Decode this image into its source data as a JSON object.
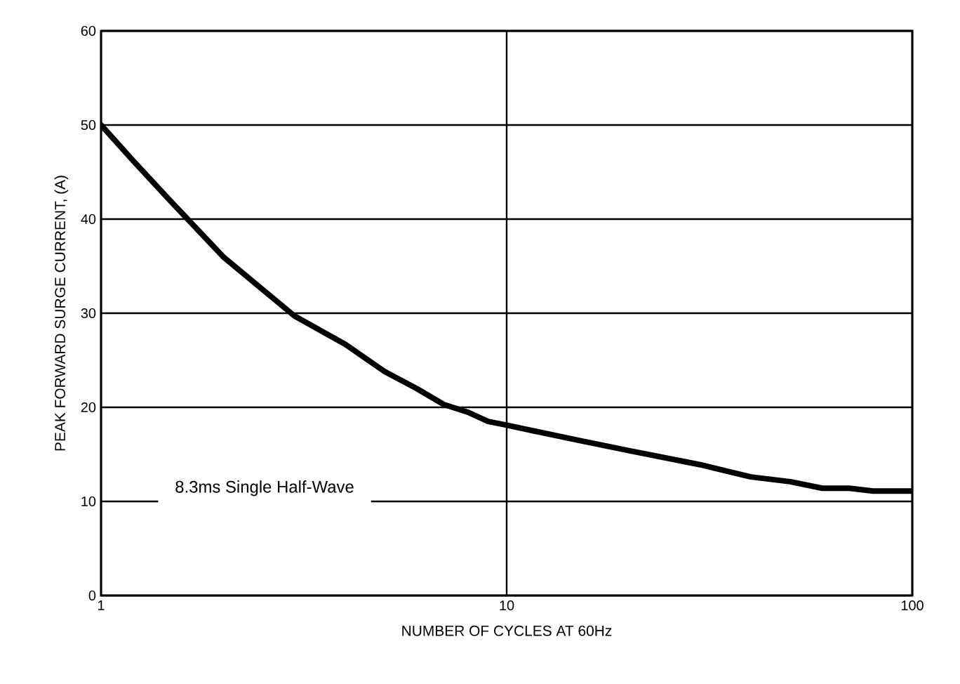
{
  "chart_data": {
    "type": "line",
    "xlabel": "NUMBER OF CYCLES AT 60Hz",
    "ylabel": "PEAK FORWARD SURGE CURRENT, (A)",
    "log": "x",
    "grid": true,
    "xlim": [
      1,
      100
    ],
    "ylim": [
      0,
      60
    ],
    "xticks": [
      1,
      10,
      100
    ],
    "yticks": [
      0,
      10,
      20,
      30,
      40,
      50,
      60
    ],
    "series": [
      {
        "color": "#000000",
        "x": [
          1,
          1.2,
          1.5,
          2,
          3,
          4,
          5,
          6,
          7,
          8,
          9,
          10,
          15,
          20,
          30,
          40,
          50,
          60,
          70,
          80,
          100
        ],
        "values": [
          50,
          46.2,
          41.7,
          36,
          29.7,
          26.7,
          23.8,
          22,
          20.3,
          19.5,
          18.5,
          18.1,
          16.5,
          15.4,
          13.9,
          12.6,
          12.1,
          11.4,
          11.4,
          11.1,
          11.1
        ]
      }
    ],
    "annotations": [
      "8.3ms Single Half-Wave"
    ]
  }
}
